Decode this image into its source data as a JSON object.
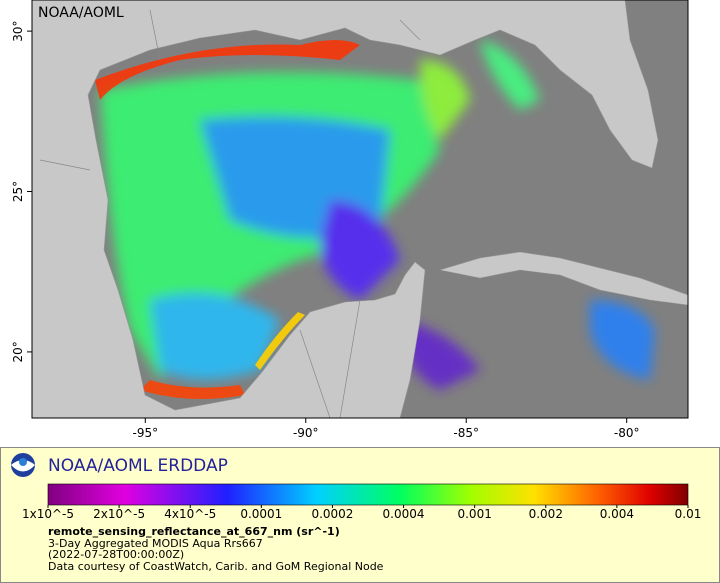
{
  "map": {
    "watermark": "NOAA/AOML",
    "xlim": [
      -98.53,
      -78.09
    ],
    "ylim": [
      17.94,
      30.97
    ],
    "xticks": [
      {
        "value": -95,
        "label": "-95°"
      },
      {
        "value": -90,
        "label": "-90°"
      },
      {
        "value": -85,
        "label": "-85°"
      },
      {
        "value": -80,
        "label": "-80°"
      }
    ],
    "yticks": [
      {
        "value": 30,
        "label": "30°"
      },
      {
        "value": 25,
        "label": "25°"
      },
      {
        "value": 20,
        "label": "20°"
      }
    ]
  },
  "legend": {
    "title": "NOAA/AOML ERDDAP",
    "colorbar_labels": [
      "1x10^-5",
      "2x10^-5",
      "4x10^-5",
      "0.0001",
      "0.0002",
      "0.0004",
      "0.001",
      "0.002",
      "0.004",
      "0.01"
    ],
    "variable": "remote_sensing_reflectance_at_667_nm (sr^-1)",
    "dataset": "3-Day Aggregated MODIS Aqua Rrs667",
    "time": "(2022-07-28T00:00:00Z)",
    "credit": "Data courtesy of CoastWatch, Carib. and GoM Regional Node"
  }
}
